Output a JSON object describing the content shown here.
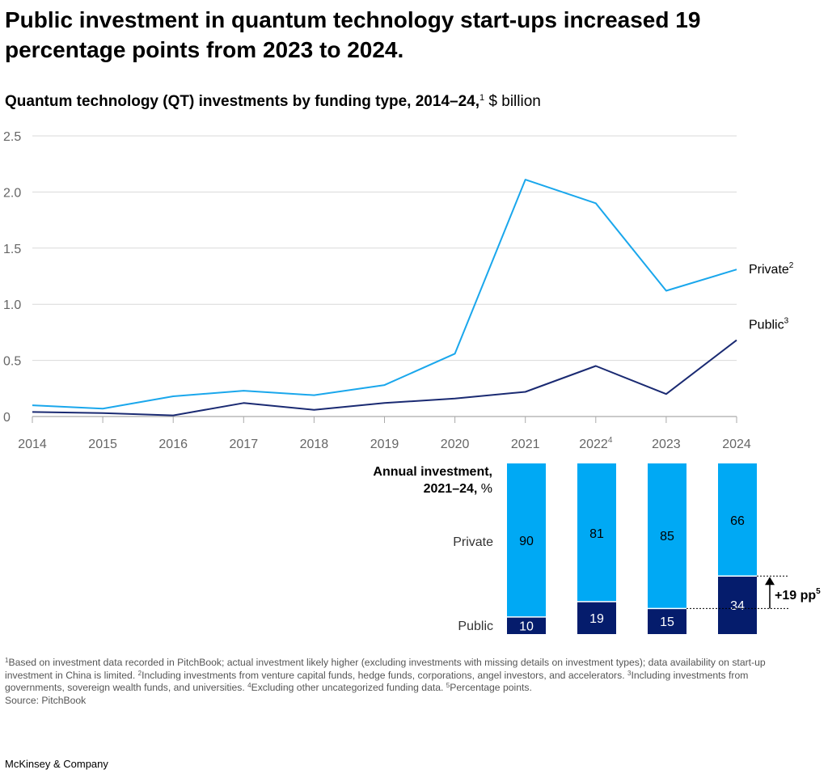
{
  "headline": "Public investment in quantum technology start-ups increased 19 percentage points from 2023 to 2024.",
  "subtitle": {
    "bold": "Quantum technology (QT) investments by funding type, 2014–24,",
    "sup": "1",
    "unit": " $ billion"
  },
  "colors": {
    "private": "#1aa7ec",
    "public": "#1a2a72",
    "bar_private": "#00a9f4",
    "bar_public": "#051c6c",
    "grid": "#d9d9d9"
  },
  "chart_data": [
    {
      "type": "line",
      "title": "Quantum technology (QT) investments by funding type, 2014–24",
      "ylabel": "$ billion",
      "ylim": [
        0,
        2.5
      ],
      "yticks": [
        0,
        0.5,
        1.0,
        1.5,
        2.0,
        2.5
      ],
      "ytick_labels": [
        "0",
        "0.5",
        "1.0",
        "1.5",
        "2.0",
        "2.5"
      ],
      "x": [
        "2014",
        "2015",
        "2016",
        "2017",
        "2018",
        "2019",
        "2020",
        "2021",
        "2022",
        "2023",
        "2024"
      ],
      "x_sup": [
        "",
        "",
        "",
        "",
        "",
        "",
        "",
        "",
        "4",
        "",
        ""
      ],
      "series": [
        {
          "key": "private",
          "name": "Private",
          "sup": "2",
          "values": [
            0.1,
            0.07,
            0.18,
            0.23,
            0.19,
            0.28,
            0.56,
            2.11,
            1.9,
            1.12,
            1.31
          ]
        },
        {
          "key": "public",
          "name": "Public",
          "sup": "3",
          "values": [
            0.04,
            0.03,
            0.01,
            0.12,
            0.06,
            0.12,
            0.16,
            0.22,
            0.45,
            0.2,
            0.68
          ]
        }
      ],
      "grid": true,
      "legend": "inline-right"
    },
    {
      "type": "bar",
      "stacked": true,
      "title": "Annual investment,",
      "title_line2": "2021–24,",
      "title_unit": " %",
      "categories": [
        "2021",
        "2022",
        "2023",
        "2024"
      ],
      "series": [
        {
          "key": "private",
          "name": "Private",
          "values": [
            90,
            81,
            85,
            66
          ]
        },
        {
          "key": "public",
          "name": "Public",
          "values": [
            10,
            19,
            15,
            34
          ]
        }
      ],
      "annotation": {
        "label": "+19 pp",
        "sup": "5"
      }
    }
  ],
  "footnotes": {
    "n1": "1",
    "t1": "Based on investment data recorded in PitchBook; actual investment likely higher (excluding investments with missing details on investment types); data availability on start-up investment in China is limited. ",
    "n2": "2",
    "t2": "Including investments from venture capital funds, hedge funds, corporations, angel investors, and accelerators. ",
    "n3": "3",
    "t3": "Including investments from governments, sovereign wealth funds, and universities. ",
    "n4": "4",
    "t4": "Excluding other uncategorized funding data. ",
    "n5": "5",
    "t5": "Percentage points.",
    "source": "Source: PitchBook"
  },
  "brand": "McKinsey & Company"
}
